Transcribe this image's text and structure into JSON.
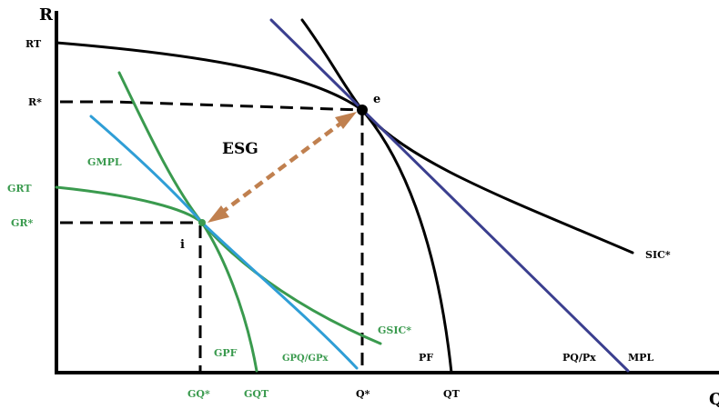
{
  "colors": {
    "black": "#000000",
    "green": "#3a9a4e",
    "cyan": "#2f9ed6",
    "navy": "#3b3f8f",
    "arrow": "#c0804f"
  },
  "labels": {
    "axis_y": "R",
    "axis_x": "Q",
    "rt": "RT",
    "r_star": "R*",
    "grt": "GRT",
    "gr_star": "GR*",
    "gmpl": "GMPL",
    "esg": "ESG",
    "e": "e",
    "i": "i",
    "sic_star": "SIC*",
    "gsic_star": "GSIC*",
    "gpf": "GPF",
    "gp_ratio": "GPQ/GPx",
    "pf": "PF",
    "p_ratio": "PQ/Px",
    "mpl": "MPL",
    "gq_star": "GQ*",
    "gqt": "GQT",
    "q_star": "Q*",
    "qt": "QT"
  }
}
